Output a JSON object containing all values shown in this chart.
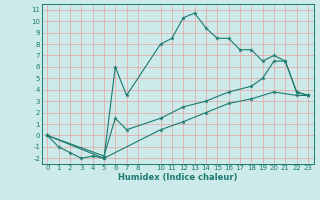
{
  "line1_x": [
    0,
    1,
    2,
    3,
    4,
    5,
    6,
    7,
    10,
    11,
    12,
    13,
    14,
    15,
    16,
    17,
    18,
    19,
    20,
    21,
    22,
    23
  ],
  "line1_y": [
    0,
    -1,
    -1.5,
    -2,
    -1.8,
    -2,
    6.0,
    3.5,
    8.0,
    8.5,
    10.3,
    10.7,
    9.4,
    8.5,
    8.5,
    7.5,
    7.5,
    6.5,
    7.0,
    6.5,
    3.8,
    3.5
  ],
  "line2_x": [
    0,
    5,
    6,
    7,
    10,
    12,
    14,
    16,
    18,
    19,
    20,
    21,
    22,
    23
  ],
  "line2_y": [
    0,
    -1.8,
    1.5,
    0.5,
    1.5,
    2.5,
    3.0,
    3.8,
    4.3,
    5.0,
    6.5,
    6.5,
    3.8,
    3.5
  ],
  "line3_x": [
    0,
    5,
    10,
    12,
    14,
    16,
    18,
    20,
    22,
    23
  ],
  "line3_y": [
    0,
    -2.0,
    0.5,
    1.2,
    2.0,
    2.8,
    3.2,
    3.8,
    3.5,
    3.5
  ],
  "color": "#1a7a6e",
  "bg_color": "#cdeaea",
  "grid_major_color": "#ffffff",
  "grid_minor_color": "#f0b8b8",
  "xlabel": "Humidex (Indice chaleur)",
  "xlim": [
    -0.5,
    23.5
  ],
  "ylim": [
    -2.5,
    11.5
  ],
  "xticks": [
    0,
    1,
    2,
    3,
    4,
    5,
    6,
    7,
    8,
    10,
    11,
    12,
    13,
    14,
    15,
    16,
    17,
    18,
    19,
    20,
    21,
    22,
    23
  ],
  "yticks": [
    -2,
    -1,
    0,
    1,
    2,
    3,
    4,
    5,
    6,
    7,
    8,
    9,
    10,
    11
  ],
  "xlabel_fontsize": 6.0,
  "tick_fontsize": 5.0
}
